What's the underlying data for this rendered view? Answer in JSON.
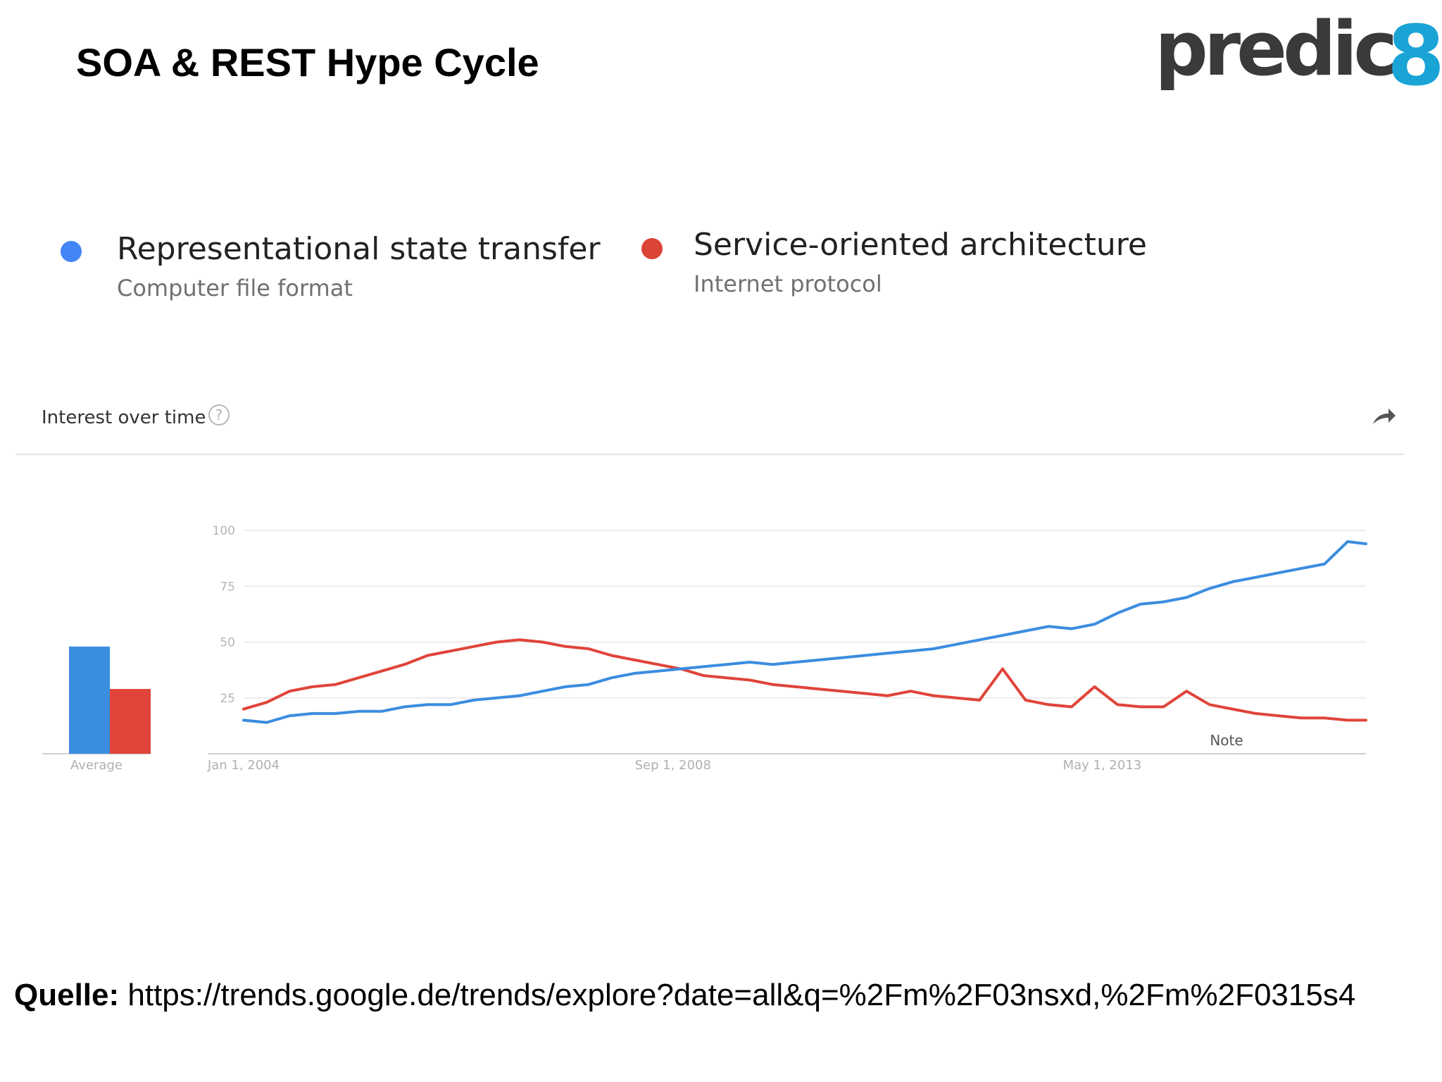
{
  "slide": {
    "title": "SOA & REST Hype Cycle"
  },
  "logo": {
    "text": "predic",
    "accent_text": "8"
  },
  "legend": {
    "items": [
      {
        "name": "Representational state transfer",
        "subtitle": "Computer file format",
        "color": "#4285f4"
      },
      {
        "name": "Service-oriented architecture",
        "subtitle": "Internet protocol",
        "color": "#db4437"
      }
    ]
  },
  "section": {
    "title": "Interest over time",
    "help_icon": "question-circle-icon",
    "share_icon": "share-arrow-icon"
  },
  "average_label": "Average",
  "note_label": "Note",
  "source": {
    "label": "Quelle:",
    "url": "https://trends.google.de/trends/explore?date=all&q=%2Fm%2F03nsxd,%2Fm%2F0315s4"
  },
  "chart_data": {
    "type": "line",
    "title": "Interest over time",
    "xlabel": "",
    "ylabel": "",
    "ylim": [
      0,
      100
    ],
    "y_ticks": [
      25,
      50,
      75,
      100
    ],
    "x_tick_labels": [
      "Jan 1, 2004",
      "Sep 1, 2008",
      "May 1, 2013"
    ],
    "x_tick_years": [
      2004,
      2008.667,
      2013.333
    ],
    "x_range": [
      2004,
      2016.2
    ],
    "grid": true,
    "series": [
      {
        "name": "Representational state transfer",
        "color": "#3b8de0",
        "average": 48,
        "points": [
          [
            2004.0,
            15
          ],
          [
            2004.25,
            14
          ],
          [
            2004.5,
            17
          ],
          [
            2004.75,
            18
          ],
          [
            2005.0,
            18
          ],
          [
            2005.25,
            19
          ],
          [
            2005.5,
            19
          ],
          [
            2005.75,
            21
          ],
          [
            2006.0,
            22
          ],
          [
            2006.25,
            22
          ],
          [
            2006.5,
            24
          ],
          [
            2006.75,
            25
          ],
          [
            2007.0,
            26
          ],
          [
            2007.25,
            28
          ],
          [
            2007.5,
            30
          ],
          [
            2007.75,
            31
          ],
          [
            2008.0,
            34
          ],
          [
            2008.25,
            36
          ],
          [
            2008.5,
            37
          ],
          [
            2008.75,
            38
          ],
          [
            2009.0,
            39
          ],
          [
            2009.25,
            40
          ],
          [
            2009.5,
            41
          ],
          [
            2009.75,
            40
          ],
          [
            2010.0,
            41
          ],
          [
            2010.25,
            42
          ],
          [
            2010.5,
            43
          ],
          [
            2010.75,
            44
          ],
          [
            2011.0,
            45
          ],
          [
            2011.25,
            46
          ],
          [
            2011.5,
            47
          ],
          [
            2011.75,
            49
          ],
          [
            2012.0,
            51
          ],
          [
            2012.25,
            53
          ],
          [
            2012.5,
            55
          ],
          [
            2012.75,
            57
          ],
          [
            2013.0,
            56
          ],
          [
            2013.25,
            58
          ],
          [
            2013.5,
            63
          ],
          [
            2013.75,
            67
          ],
          [
            2014.0,
            68
          ],
          [
            2014.25,
            70
          ],
          [
            2014.5,
            74
          ],
          [
            2014.75,
            77
          ],
          [
            2015.0,
            79
          ],
          [
            2015.25,
            81
          ],
          [
            2015.5,
            83
          ],
          [
            2015.75,
            85
          ],
          [
            2016.0,
            95
          ],
          [
            2016.2,
            94
          ]
        ]
      },
      {
        "name": "Service-oriented architecture",
        "color": "#e0443a",
        "average": 29,
        "points": [
          [
            2004.0,
            20
          ],
          [
            2004.25,
            23
          ],
          [
            2004.5,
            28
          ],
          [
            2004.75,
            30
          ],
          [
            2005.0,
            31
          ],
          [
            2005.25,
            34
          ],
          [
            2005.5,
            37
          ],
          [
            2005.75,
            40
          ],
          [
            2006.0,
            44
          ],
          [
            2006.25,
            46
          ],
          [
            2006.5,
            48
          ],
          [
            2006.75,
            50
          ],
          [
            2007.0,
            51
          ],
          [
            2007.25,
            50
          ],
          [
            2007.5,
            48
          ],
          [
            2007.75,
            47
          ],
          [
            2008.0,
            44
          ],
          [
            2008.25,
            42
          ],
          [
            2008.5,
            40
          ],
          [
            2008.75,
            38
          ],
          [
            2009.0,
            35
          ],
          [
            2009.25,
            34
          ],
          [
            2009.5,
            33
          ],
          [
            2009.75,
            31
          ],
          [
            2010.0,
            30
          ],
          [
            2010.25,
            29
          ],
          [
            2010.5,
            28
          ],
          [
            2010.75,
            27
          ],
          [
            2011.0,
            26
          ],
          [
            2011.25,
            28
          ],
          [
            2011.5,
            26
          ],
          [
            2011.75,
            25
          ],
          [
            2012.0,
            24
          ],
          [
            2012.25,
            38
          ],
          [
            2012.5,
            24
          ],
          [
            2012.75,
            22
          ],
          [
            2013.0,
            21
          ],
          [
            2013.25,
            30
          ],
          [
            2013.5,
            22
          ],
          [
            2013.75,
            21
          ],
          [
            2014.0,
            21
          ],
          [
            2014.25,
            28
          ],
          [
            2014.5,
            22
          ],
          [
            2014.75,
            20
          ],
          [
            2015.0,
            18
          ],
          [
            2015.25,
            17
          ],
          [
            2015.5,
            16
          ],
          [
            2015.75,
            16
          ],
          [
            2016.0,
            15
          ],
          [
            2016.2,
            15
          ]
        ]
      }
    ]
  }
}
